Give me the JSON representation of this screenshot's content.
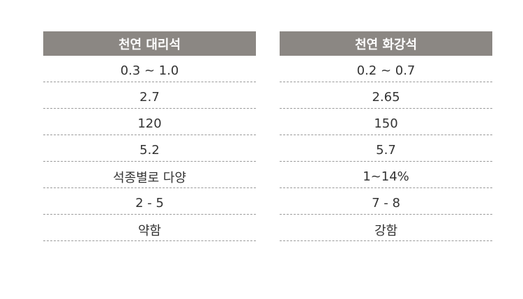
{
  "tables": [
    {
      "header": "천연 대리석",
      "rows": [
        "0.3 ~ 1.0",
        "2.7",
        "120",
        "5.2",
        "석종별로 다양",
        "2 - 5",
        "약함"
      ]
    },
    {
      "header": "천연 화강석",
      "rows": [
        "0.2 ~ 0.7",
        "2.65",
        "150",
        "5.7",
        "1~14%",
        "7 - 8",
        "강함"
      ]
    }
  ]
}
